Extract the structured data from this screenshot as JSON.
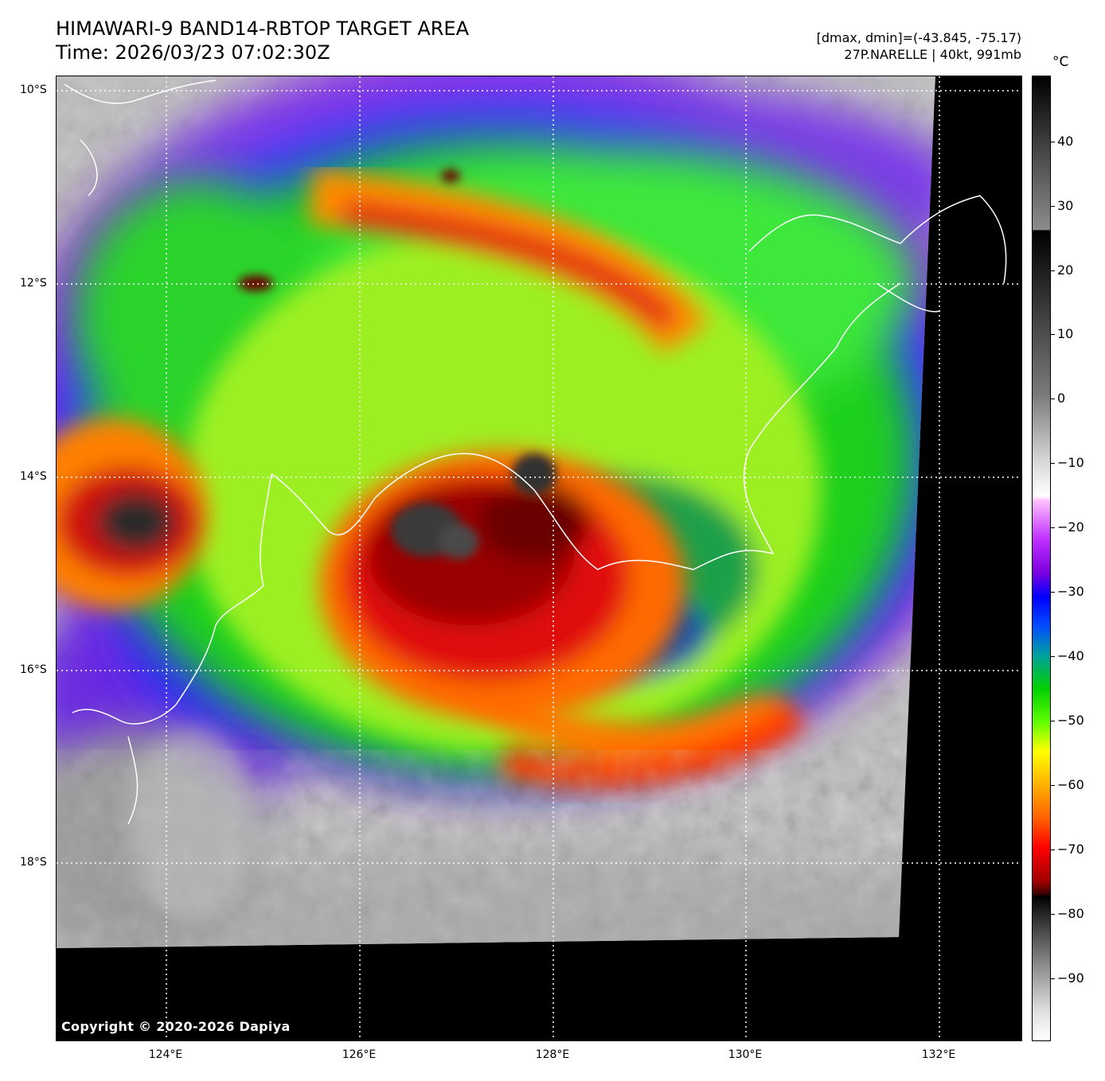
{
  "title": {
    "line1": "HIMAWARI-9 BAND14-RBTOP TARGET AREA",
    "line2": "Time: 2026/03/23 07:02:30Z"
  },
  "info": {
    "range": "[dmax, dmin]=(-43.845, -75.17)",
    "storm": "27P.NARELLE | 40kt, 991mb"
  },
  "map": {
    "lat_labels": [
      "10°S",
      "12°S",
      "14°S",
      "16°S",
      "18°S"
    ],
    "lon_labels": [
      "124°E",
      "126°E",
      "128°E",
      "130°E",
      "132°E"
    ],
    "copyright": "Copyright © 2020-2026 Dapiya",
    "colors": {
      "no_data": "#000000",
      "coastline": "#ffffff",
      "gridline": "#ffffff"
    }
  },
  "colorbar": {
    "unit": "°C",
    "ticks": [
      "40",
      "30",
      "20",
      "10",
      "0",
      "−10",
      "−20",
      "−30",
      "−40",
      "−50",
      "−60",
      "−70",
      "−80",
      "−90"
    ]
  }
}
